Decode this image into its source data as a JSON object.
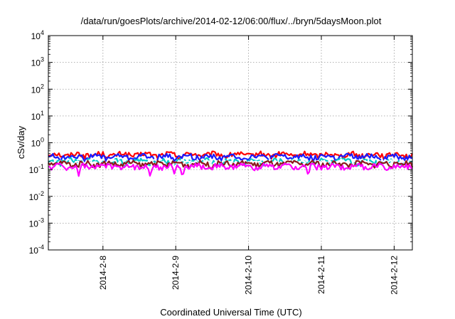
{
  "chart_data": {
    "type": "line",
    "title": "/data/run/goesPlots/archive/2014-02-12/06:00/flux/../bryn/5daysMoon.plot",
    "xlabel": "Coordinated Universal Time (UTC)",
    "ylabel": "cSv/day",
    "yscale": "log",
    "ylim": [
      0.0001,
      10000
    ],
    "y_ticks": [
      {
        "base": "10",
        "exp": "4"
      },
      {
        "base": "10",
        "exp": "3"
      },
      {
        "base": "10",
        "exp": "2"
      },
      {
        "base": "10",
        "exp": "1"
      },
      {
        "base": "10",
        "exp": "0"
      },
      {
        "base": "10",
        "exp": "-1"
      },
      {
        "base": "10",
        "exp": "-2"
      },
      {
        "base": "10",
        "exp": "-3"
      },
      {
        "base": "10",
        "exp": "-4"
      }
    ],
    "x_tick_labels": [
      "2014-2-8",
      "2014-2-9",
      "2014-2-10",
      "2014-2-11",
      "2014-2-12"
    ],
    "xlim": [
      "2014-02-07 06:00",
      "2014-02-12 06:00"
    ],
    "grid": true,
    "series": [
      {
        "color": "#ff0000",
        "base_value": 0.36,
        "dips": []
      },
      {
        "color": "#1a1aff",
        "base_value": 0.3,
        "dips": []
      },
      {
        "color": "#00c8c8",
        "base_value": 0.2,
        "dips": []
      },
      {
        "color": "#ffffff",
        "base_value": 0.185,
        "dips": []
      },
      {
        "color": "#8b1a1a",
        "base_value": 0.165,
        "dips": []
      },
      {
        "color": "#ff00ff",
        "base_value": 0.13,
        "dips": [
          0.42,
          1.4,
          1.73,
          1.84,
          3.57
        ]
      }
    ]
  }
}
